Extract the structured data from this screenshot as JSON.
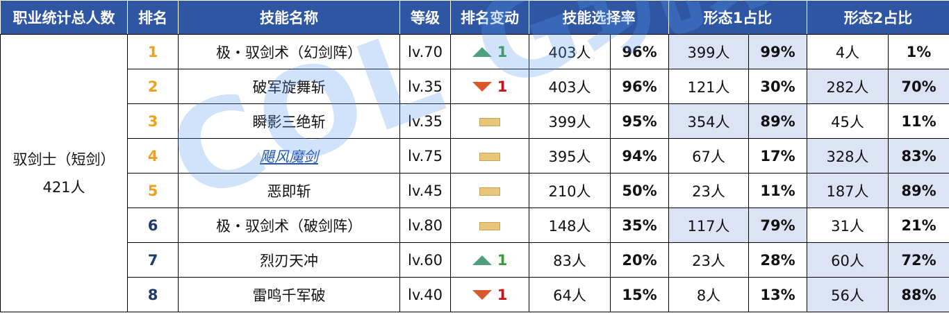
{
  "header": {
    "job_total": "职业统计总人数",
    "rank": "排名",
    "skill_name": "技能名称",
    "level": "等级",
    "rank_change": "排名变动",
    "select_rate": "技能选择率",
    "form1": "形态1占比",
    "form2": "形态2占比"
  },
  "job": {
    "line1": "驭剑士（短剑）",
    "line2": "421人"
  },
  "rows": [
    {
      "rank": "1",
      "name": "极・驭剑术（幻剑阵）",
      "level": "lv.70",
      "change": "up",
      "change_num": "1",
      "sel": "403人",
      "sel_pct": "96%",
      "f1": "399人",
      "f1_pct": "99%",
      "f2": "4人",
      "f2_pct": "1%"
    },
    {
      "rank": "2",
      "name": "破军旋舞斩",
      "level": "lv.35",
      "change": "down",
      "change_num": "1",
      "sel": "403人",
      "sel_pct": "96%",
      "f1": "121人",
      "f1_pct": "30%",
      "f2": "282人",
      "f2_pct": "70%"
    },
    {
      "rank": "3",
      "name": "瞬影三绝斩",
      "level": "lv.35",
      "change": "same",
      "change_num": "",
      "sel": "399人",
      "sel_pct": "95%",
      "f1": "354人",
      "f1_pct": "89%",
      "f2": "45人",
      "f2_pct": "11%"
    },
    {
      "rank": "4",
      "name": "飓风魔剑",
      "level": "lv.75",
      "change": "same",
      "change_num": "",
      "sel": "395人",
      "sel_pct": "94%",
      "f1": "67人",
      "f1_pct": "17%",
      "f2": "328人",
      "f2_pct": "83%"
    },
    {
      "rank": "5",
      "name": "恶即斩",
      "level": "lv.45",
      "change": "same",
      "change_num": "",
      "sel": "210人",
      "sel_pct": "50%",
      "f1": "23人",
      "f1_pct": "11%",
      "f2": "187人",
      "f2_pct": "89%"
    },
    {
      "rank": "6",
      "name": "极・驭剑术（破剑阵）",
      "level": "lv.80",
      "change": "same",
      "change_num": "",
      "sel": "148人",
      "sel_pct": "35%",
      "f1": "117人",
      "f1_pct": "79%",
      "f2": "31人",
      "f2_pct": "21%"
    },
    {
      "rank": "7",
      "name": "烈刃天冲",
      "level": "lv.60",
      "change": "up",
      "change_num": "1",
      "sel": "83人",
      "sel_pct": "20%",
      "f1": "23人",
      "f1_pct": "28%",
      "f2": "60人",
      "f2_pct": "72%"
    },
    {
      "rank": "8",
      "name": "雷鸣千军破",
      "level": "lv.40",
      "change": "down",
      "change_num": "1",
      "sel": "64人",
      "sel_pct": "15%",
      "f1": "8人",
      "f1_pct": "13%",
      "f2": "56人",
      "f2_pct": "88%"
    }
  ],
  "watermark": "COL G玩家社区"
}
